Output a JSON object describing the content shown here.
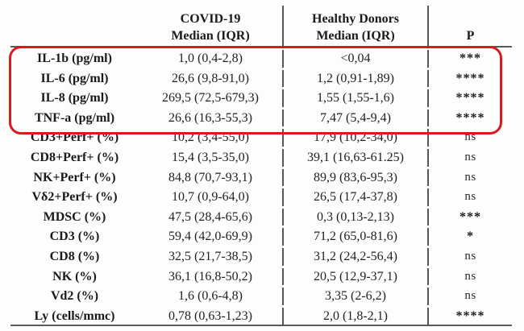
{
  "table": {
    "header": {
      "covid_line1": "COVID-19",
      "covid_line2": "Median (IQR)",
      "healthy_line1": "Healthy Donors",
      "healthy_line2": "Median (IQR)",
      "p_label": "P"
    },
    "rows": [
      {
        "label": "IL-1b (pg/ml)",
        "covid": "1,0 (0,4-2,8)",
        "healthy": "<0,04",
        "p": "***"
      },
      {
        "label": "IL-6 (pg/ml)",
        "covid": "26,6 (9,8-91,0)",
        "healthy": "1,2 (0,91-1,89)",
        "p": "****"
      },
      {
        "label": "IL-8 (pg/ml)",
        "covid": "269,5 (72,5-679,3)",
        "healthy": "1,55 (1,55-1,6)",
        "p": "****"
      },
      {
        "label": "TNF-a (pg/ml)",
        "covid": "26,6 (16,3-55,3)",
        "healthy": "7,47 (5,4-9,4)",
        "p": "****"
      },
      {
        "label": "CD3+Perf+ (%)",
        "covid": "10,2 (3,4-55,0)",
        "healthy": "17,9 (10,2-34,0)",
        "p": "ns"
      },
      {
        "label": "CD8+Perf+ (%)",
        "covid": "15,4 (3,5-35,0)",
        "healthy": "39,1 (16,63-61.25)",
        "p": "ns"
      },
      {
        "label": "NK+Perf+ (%)",
        "covid": "84,8 (70,7-93,1)",
        "healthy": "89,9 (83,6-95,3)",
        "p": "ns"
      },
      {
        "label": "Vδ2+Perf+ (%)",
        "covid": "10,7 (0,9-64,0)",
        "healthy": "26,5 (17,4-37,8)",
        "p": "ns"
      },
      {
        "label": "MDSC (%)",
        "covid": "47,5 (28,4-65,6)",
        "healthy": "0,3 (0,13-2,13)",
        "p": "***"
      },
      {
        "label": "CD3 (%)",
        "covid": "59,4 (42,0-69,9)",
        "healthy": "71,2 (65,0-81,6)",
        "p": "*"
      },
      {
        "label": "CD8 (%)",
        "covid": "32,5 (21,7-38,5)",
        "healthy": "31,2 (24,2-56,4)",
        "p": "ns"
      },
      {
        "label": "NK (%)",
        "covid": "36,1 (16,8-50,2)",
        "healthy": "20,5 (12,9-37,1)",
        "p": "ns"
      },
      {
        "label": "Vd2 (%)",
        "covid": "1,6 (0,6-4,8)",
        "healthy": "3,35 (2-6,2)",
        "p": "ns"
      },
      {
        "label": "Ly (cells/mmc)",
        "covid": "0,78 (0,63-1,23)",
        "healthy": "2,0 (1,8-2,1)",
        "p": "****"
      }
    ],
    "highlight_color": "#da191c",
    "rule_color": "#5a5a5a"
  }
}
